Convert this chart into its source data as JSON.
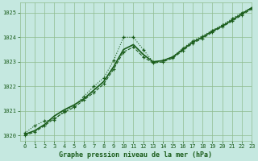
{
  "title": "Graphe pression niveau de la mer (hPa)",
  "bg_color": "#c5e8e0",
  "grid_color": "#8fbc8f",
  "line_color": "#1a5c1a",
  "xlim": [
    -0.5,
    23
  ],
  "ylim": [
    1019.8,
    1025.4
  ],
  "yticks": [
    1020,
    1021,
    1022,
    1023,
    1024,
    1025
  ],
  "xticks": [
    0,
    1,
    2,
    3,
    4,
    5,
    6,
    7,
    8,
    9,
    10,
    11,
    12,
    13,
    14,
    15,
    16,
    17,
    18,
    19,
    20,
    21,
    22,
    23
  ],
  "hours": [
    0,
    1,
    2,
    3,
    4,
    5,
    6,
    7,
    8,
    9,
    10,
    11,
    12,
    13,
    14,
    15,
    16,
    17,
    18,
    19,
    20,
    21,
    22,
    23
  ],
  "pressure_dotted": [
    1020.1,
    1020.4,
    1020.6,
    1020.65,
    1021.0,
    1021.2,
    1021.6,
    1022.0,
    1022.35,
    1023.05,
    1024.0,
    1024.0,
    1023.5,
    1023.0,
    1023.05,
    1023.2,
    1023.55,
    1023.85,
    1024.05,
    1024.28,
    1024.5,
    1024.75,
    1025.0,
    1025.2
  ],
  "pressure_solid": [
    1020.05,
    1020.2,
    1020.45,
    1020.8,
    1021.05,
    1021.25,
    1021.5,
    1021.85,
    1022.2,
    1022.8,
    1023.5,
    1023.7,
    1023.3,
    1023.0,
    1023.05,
    1023.2,
    1023.5,
    1023.8,
    1024.0,
    1024.25,
    1024.45,
    1024.7,
    1024.95,
    1025.2
  ],
  "pressure_dashed": [
    1020.0,
    1020.15,
    1020.4,
    1020.7,
    1020.95,
    1021.15,
    1021.45,
    1021.75,
    1022.1,
    1022.7,
    1023.4,
    1023.6,
    1023.2,
    1022.95,
    1023.0,
    1023.15,
    1023.45,
    1023.75,
    1023.95,
    1024.2,
    1024.42,
    1024.65,
    1024.9,
    1025.15
  ]
}
